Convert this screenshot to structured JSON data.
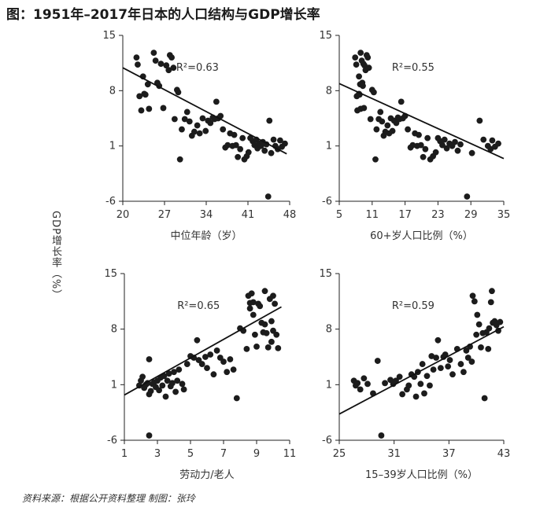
{
  "title": "图：1951年–2017年日本的人口结构与GDP增长率",
  "shared_ylabel": "GDP增长率（%）",
  "source": "资料来源：根据公开资料整理      制图：张玲",
  "chart_data": [
    {
      "type": "scatter",
      "xlabel": "中位年龄（岁）",
      "r2_text": "R²=0.63",
      "xlim": [
        20,
        48
      ],
      "ylim": [
        -6,
        15
      ],
      "xticks": [
        20,
        27,
        34,
        41,
        48
      ],
      "yticks": [
        -6,
        1,
        8,
        15
      ],
      "trendline": {
        "x": [
          20,
          47.5
        ],
        "y": [
          10.9,
          0
        ]
      },
      "points": [
        [
          22.3,
          12.2
        ],
        [
          22.5,
          11.3
        ],
        [
          22.8,
          7.3
        ],
        [
          23.1,
          5.5
        ],
        [
          23.4,
          9.8
        ],
        [
          23.6,
          7.6
        ],
        [
          23.8,
          7.5
        ],
        [
          24.2,
          8.8
        ],
        [
          24.4,
          5.7
        ],
        [
          25.2,
          12.8
        ],
        [
          25.5,
          11.8
        ],
        [
          25.8,
          9.0
        ],
        [
          26.1,
          8.6
        ],
        [
          26.4,
          11.4
        ],
        [
          26.8,
          5.8
        ],
        [
          27.3,
          11.2
        ],
        [
          27.7,
          10.6
        ],
        [
          27.9,
          12.5
        ],
        [
          28.2,
          12.2
        ],
        [
          28.5,
          10.9
        ],
        [
          28.7,
          4.4
        ],
        [
          29.1,
          8.1
        ],
        [
          29.3,
          7.8
        ],
        [
          29.6,
          -0.7
        ],
        [
          29.9,
          3.1
        ],
        [
          30.4,
          4.4
        ],
        [
          30.8,
          5.3
        ],
        [
          31.2,
          4.1
        ],
        [
          31.6,
          2.3
        ],
        [
          32.0,
          2.8
        ],
        [
          32.5,
          3.6
        ],
        [
          32.9,
          2.6
        ],
        [
          33.4,
          4.5
        ],
        [
          33.9,
          2.9
        ],
        [
          34.3,
          4.2
        ],
        [
          34.7,
          3.9
        ],
        [
          35.1,
          4.6
        ],
        [
          35.4,
          4.4
        ],
        [
          35.7,
          6.6
        ],
        [
          36.0,
          4.5
        ],
        [
          36.4,
          4.8
        ],
        [
          36.8,
          3.1
        ],
        [
          37.2,
          0.8
        ],
        [
          37.6,
          1.1
        ],
        [
          38.0,
          2.6
        ],
        [
          38.4,
          1.0
        ],
        [
          38.7,
          2.4
        ],
        [
          39.0,
          1.1
        ],
        [
          39.3,
          -0.4
        ],
        [
          39.7,
          0.6
        ],
        [
          40.1,
          2.0
        ],
        [
          40.4,
          -0.7
        ],
        [
          40.8,
          -0.3
        ],
        [
          41.1,
          0.2
        ],
        [
          41.4,
          2.0
        ],
        [
          41.8,
          1.6
        ],
        [
          42.1,
          1.1
        ],
        [
          42.4,
          1.8
        ],
        [
          42.6,
          0.7
        ],
        [
          42.9,
          1.3
        ],
        [
          43.2,
          1.0
        ],
        [
          43.5,
          1.5
        ],
        [
          43.8,
          0.4
        ],
        [
          44.1,
          1.2
        ],
        [
          44.4,
          -5.4
        ],
        [
          44.6,
          4.2
        ],
        [
          44.9,
          0.1
        ],
        [
          45.3,
          1.8
        ],
        [
          45.6,
          1.0
        ],
        [
          46.0,
          0.6
        ],
        [
          46.4,
          1.7
        ],
        [
          46.7,
          0.9
        ],
        [
          47.2,
          1.3
        ]
      ]
    },
    {
      "type": "scatter",
      "xlabel": "60+岁人口比例（%）",
      "r2_text": "R²=0.55",
      "xlim": [
        5,
        35
      ],
      "ylim": [
        -6,
        15
      ],
      "xticks": [
        5,
        11,
        17,
        23,
        29,
        35
      ],
      "yticks": [
        -6,
        1,
        8,
        15
      ],
      "trendline": {
        "x": [
          5,
          35
        ],
        "y": [
          8.9,
          -0.6
        ]
      },
      "points": [
        [
          7.9,
          12.2
        ],
        [
          8.1,
          11.3
        ],
        [
          8.2,
          7.3
        ],
        [
          8.3,
          5.5
        ],
        [
          8.6,
          9.8
        ],
        [
          8.6,
          7.6
        ],
        [
          8.7,
          7.5
        ],
        [
          8.8,
          8.8
        ],
        [
          8.9,
          5.7
        ],
        [
          8.9,
          12.8
        ],
        [
          9.1,
          11.8
        ],
        [
          9.2,
          9.0
        ],
        [
          9.3,
          8.6
        ],
        [
          9.4,
          11.4
        ],
        [
          9.5,
          5.8
        ],
        [
          9.6,
          11.2
        ],
        [
          9.8,
          10.6
        ],
        [
          10.0,
          12.5
        ],
        [
          10.2,
          12.2
        ],
        [
          10.4,
          10.9
        ],
        [
          10.7,
          4.4
        ],
        [
          11.0,
          8.1
        ],
        [
          11.3,
          7.8
        ],
        [
          11.6,
          -0.7
        ],
        [
          11.8,
          3.1
        ],
        [
          12.2,
          4.4
        ],
        [
          12.5,
          5.3
        ],
        [
          12.8,
          4.1
        ],
        [
          13.1,
          2.3
        ],
        [
          13.4,
          2.8
        ],
        [
          13.8,
          3.6
        ],
        [
          14.1,
          2.6
        ],
        [
          14.4,
          4.5
        ],
        [
          14.7,
          2.9
        ],
        [
          15.0,
          4.2
        ],
        [
          15.4,
          3.9
        ],
        [
          15.7,
          4.6
        ],
        [
          16.0,
          4.4
        ],
        [
          16.3,
          6.6
        ],
        [
          16.6,
          4.5
        ],
        [
          17.0,
          4.8
        ],
        [
          17.5,
          3.1
        ],
        [
          18.0,
          0.8
        ],
        [
          18.4,
          1.1
        ],
        [
          18.8,
          2.6
        ],
        [
          19.2,
          1.0
        ],
        [
          19.5,
          2.4
        ],
        [
          19.9,
          1.1
        ],
        [
          20.3,
          -0.4
        ],
        [
          20.7,
          0.6
        ],
        [
          21.1,
          2.0
        ],
        [
          21.6,
          -0.7
        ],
        [
          22.1,
          -0.3
        ],
        [
          22.6,
          0.2
        ],
        [
          23.0,
          2.0
        ],
        [
          23.4,
          1.6
        ],
        [
          23.8,
          1.1
        ],
        [
          24.2,
          1.8
        ],
        [
          24.6,
          0.7
        ],
        [
          25.1,
          1.3
        ],
        [
          25.6,
          1.0
        ],
        [
          26.1,
          1.5
        ],
        [
          26.6,
          0.4
        ],
        [
          27.1,
          1.2
        ],
        [
          28.3,
          -5.4
        ],
        [
          30.6,
          4.2
        ],
        [
          29.2,
          0.1
        ],
        [
          31.3,
          1.8
        ],
        [
          32.1,
          1.0
        ],
        [
          32.6,
          0.6
        ],
        [
          32.9,
          1.7
        ],
        [
          33.4,
          0.9
        ],
        [
          34.0,
          1.3
        ]
      ]
    },
    {
      "type": "scatter",
      "xlabel": "劳动力/老人",
      "r2_text": "R²=0.65",
      "xlim": [
        1,
        11
      ],
      "ylim": [
        -6,
        15
      ],
      "xticks": [
        1,
        3,
        5,
        7,
        9,
        11
      ],
      "yticks": [
        -6,
        1,
        8,
        15
      ],
      "trendline": {
        "x": [
          1,
          10.5
        ],
        "y": [
          -0.3,
          10.8
        ]
      },
      "points": [
        [
          1.9,
          0.9
        ],
        [
          2.0,
          1.5
        ],
        [
          2.1,
          2.0
        ],
        [
          2.2,
          0.6
        ],
        [
          2.3,
          1.0
        ],
        [
          2.4,
          1.2
        ],
        [
          2.5,
          -0.2
        ],
        [
          2.5,
          4.2
        ],
        [
          2.5,
          -5.4
        ],
        [
          2.6,
          0.2
        ],
        [
          2.7,
          1.1
        ],
        [
          2.8,
          1.3
        ],
        [
          2.9,
          0.7
        ],
        [
          3.0,
          1.5
        ],
        [
          3.1,
          0.3
        ],
        [
          3.2,
          1.9
        ],
        [
          3.3,
          0.9
        ],
        [
          3.4,
          2.1
        ],
        [
          3.5,
          -0.5
        ],
        [
          3.6,
          1.5
        ],
        [
          3.7,
          2.4
        ],
        [
          3.8,
          0.8
        ],
        [
          3.9,
          1.2
        ],
        [
          4.0,
          2.6
        ],
        [
          4.1,
          0.1
        ],
        [
          4.2,
          1.5
        ],
        [
          4.3,
          2.9
        ],
        [
          4.5,
          1.1
        ],
        [
          4.6,
          0.4
        ],
        [
          4.8,
          3.6
        ],
        [
          5.0,
          4.6
        ],
        [
          5.2,
          4.4
        ],
        [
          5.4,
          6.6
        ],
        [
          5.5,
          4.1
        ],
        [
          5.7,
          3.6
        ],
        [
          5.9,
          4.5
        ],
        [
          6.0,
          3.1
        ],
        [
          6.2,
          4.8
        ],
        [
          6.4,
          2.3
        ],
        [
          6.6,
          5.3
        ],
        [
          6.8,
          4.4
        ],
        [
          7.0,
          3.9
        ],
        [
          7.2,
          2.6
        ],
        [
          7.4,
          4.2
        ],
        [
          7.6,
          2.9
        ],
        [
          7.8,
          -0.7
        ],
        [
          8.0,
          8.1
        ],
        [
          8.2,
          7.8
        ],
        [
          8.4,
          5.5
        ],
        [
          8.5,
          12.2
        ],
        [
          8.6,
          11.3
        ],
        [
          8.6,
          10.6
        ],
        [
          8.7,
          12.5
        ],
        [
          8.8,
          11.4
        ],
        [
          8.8,
          9.8
        ],
        [
          8.9,
          7.3
        ],
        [
          9.0,
          5.8
        ],
        [
          9.1,
          11.2
        ],
        [
          9.2,
          10.9
        ],
        [
          9.3,
          8.8
        ],
        [
          9.4,
          7.6
        ],
        [
          9.5,
          12.8
        ],
        [
          9.5,
          8.6
        ],
        [
          9.6,
          7.5
        ],
        [
          9.7,
          5.7
        ],
        [
          9.8,
          11.8
        ],
        [
          9.9,
          9.0
        ],
        [
          9.9,
          6.4
        ],
        [
          10.0,
          12.2
        ],
        [
          10.0,
          7.8
        ],
        [
          10.1,
          11.2
        ],
        [
          10.2,
          7.3
        ],
        [
          10.3,
          5.6
        ]
      ]
    },
    {
      "type": "scatter",
      "xlabel": "15–39岁人口比例（%）",
      "r2_text": "R²=0.59",
      "xlim": [
        25,
        43
      ],
      "ylim": [
        -6,
        15
      ],
      "xticks": [
        25,
        31,
        37,
        43
      ],
      "yticks": [
        -6,
        1,
        8,
        15
      ],
      "trendline": {
        "x": [
          25,
          43
        ],
        "y": [
          -2.7,
          8.3
        ]
      },
      "points": [
        [
          26.6,
          1.5
        ],
        [
          26.8,
          0.9
        ],
        [
          27.0,
          1.2
        ],
        [
          27.3,
          0.4
        ],
        [
          27.7,
          1.8
        ],
        [
          28.1,
          1.1
        ],
        [
          28.7,
          -0.1
        ],
        [
          29.2,
          4.0
        ],
        [
          29.6,
          -5.4
        ],
        [
          30.0,
          1.2
        ],
        [
          30.6,
          1.6
        ],
        [
          30.9,
          1.1
        ],
        [
          31.2,
          1.5
        ],
        [
          31.6,
          2.0
        ],
        [
          31.9,
          -0.2
        ],
        [
          32.4,
          0.4
        ],
        [
          32.6,
          0.9
        ],
        [
          32.9,
          2.3
        ],
        [
          33.2,
          2.0
        ],
        [
          33.4,
          -0.5
        ],
        [
          33.6,
          2.6
        ],
        [
          33.9,
          1.1
        ],
        [
          34.1,
          3.6
        ],
        [
          34.3,
          -0.1
        ],
        [
          34.6,
          2.1
        ],
        [
          34.9,
          0.9
        ],
        [
          35.1,
          4.6
        ],
        [
          35.3,
          2.9
        ],
        [
          35.6,
          4.4
        ],
        [
          35.8,
          6.6
        ],
        [
          36.1,
          3.1
        ],
        [
          36.4,
          4.5
        ],
        [
          36.6,
          4.8
        ],
        [
          36.9,
          3.3
        ],
        [
          37.1,
          4.1
        ],
        [
          37.4,
          2.3
        ],
        [
          37.9,
          5.5
        ],
        [
          38.3,
          3.6
        ],
        [
          38.6,
          2.6
        ],
        [
          38.9,
          5.3
        ],
        [
          39.1,
          4.4
        ],
        [
          39.3,
          5.8
        ],
        [
          39.5,
          3.9
        ],
        [
          39.6,
          12.2
        ],
        [
          39.8,
          11.5
        ],
        [
          40.0,
          7.3
        ],
        [
          40.1,
          9.8
        ],
        [
          40.3,
          8.6
        ],
        [
          40.5,
          5.7
        ],
        [
          40.7,
          7.5
        ],
        [
          40.9,
          -0.7
        ],
        [
          41.1,
          7.6
        ],
        [
          41.3,
          5.5
        ],
        [
          41.4,
          8.1
        ],
        [
          41.6,
          11.4
        ],
        [
          41.7,
          12.8
        ],
        [
          41.8,
          8.8
        ],
        [
          42.0,
          9.0
        ],
        [
          42.2,
          8.5
        ],
        [
          42.4,
          7.8
        ],
        [
          42.6,
          8.9
        ]
      ]
    }
  ]
}
